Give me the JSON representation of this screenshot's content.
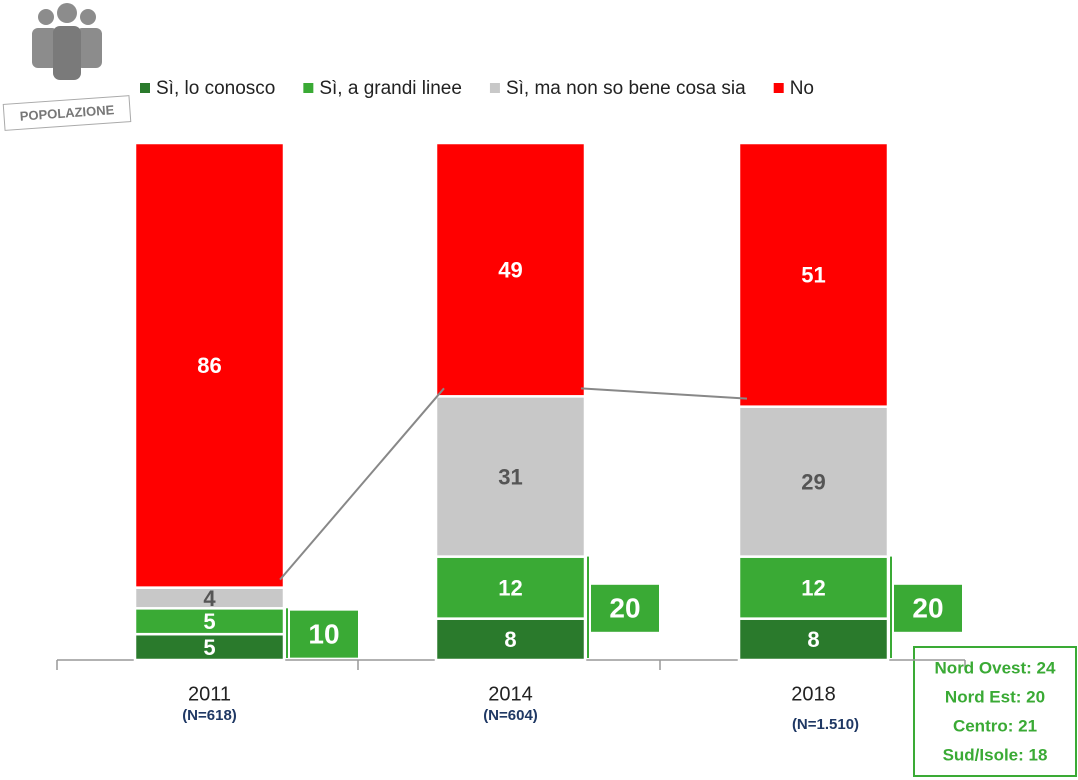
{
  "chart_data": {
    "type": "stacked_bar",
    "categories": [
      "2011",
      "2014",
      "2018"
    ],
    "sample_sizes": [
      "(N=618)",
      "(N=604)",
      "(N=1.510)"
    ],
    "series": [
      {
        "name": "Sì, lo conosco",
        "color": "#2a7a2c",
        "values": [
          5,
          8,
          8
        ]
      },
      {
        "name": "Sì, a grandi linee",
        "color": "#3aaa35",
        "values": [
          5,
          12,
          12
        ]
      },
      {
        "name": "Sì, ma non so bene cosa sia",
        "color": "#c8c8c8",
        "values": [
          4,
          31,
          29
        ]
      },
      {
        "name": "No",
        "color": "#ff0000",
        "values": [
          86,
          49,
          51
        ]
      }
    ],
    "group_totals": [
      10,
      20,
      20
    ],
    "ylim": [
      0,
      100
    ],
    "badge": "POPOLAZIONE",
    "regional_breakdown": [
      "Nord Ovest: 24",
      "Nord Est: 20",
      "Centro: 21",
      "Sud/Isole: 18"
    ]
  }
}
